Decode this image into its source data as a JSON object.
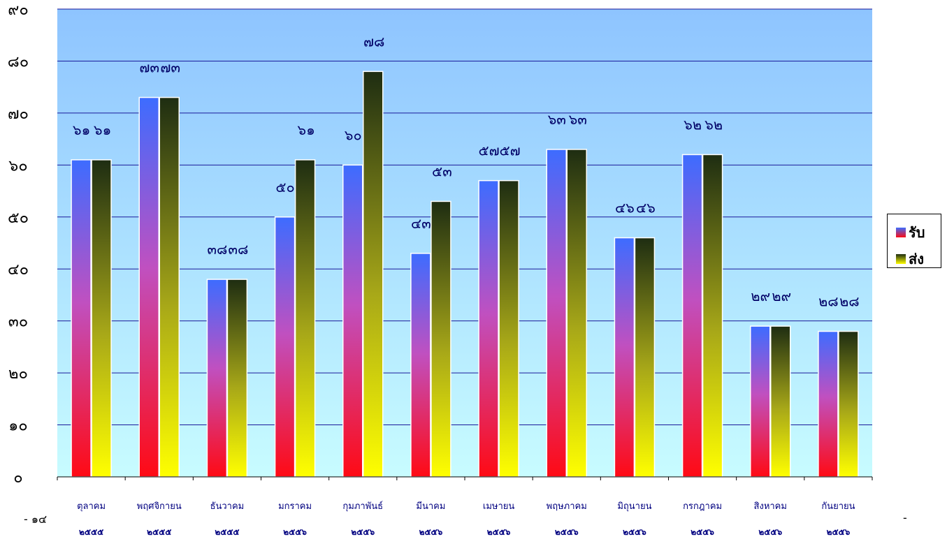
{
  "chart_data": {
    "type": "bar",
    "categories": [
      "ตุลาคม",
      "พฤศจิกายน",
      "ธันวาคม",
      "มกราคม",
      "กุมภาพันธ์",
      "มีนาคม",
      "เมษายน",
      "พฤษภาคม",
      "มิถุนายน",
      "กรกฎาคม",
      "สิงหาคม",
      "กันยายน"
    ],
    "years": [
      "๒๕๕๕",
      "๒๕๕๕",
      "๒๕๕๕",
      "๒๕๕๖",
      "๒๕๕๖",
      "๒๕๕๖",
      "๒๕๕๖",
      "๒๕๕๖",
      "๒๕๕๖",
      "๒๕๕๖",
      "๒๕๕๖",
      "๒๕๕๖"
    ],
    "series": [
      {
        "name": "รับ",
        "values": [
          61,
          73,
          38,
          50,
          60,
          43,
          57,
          63,
          46,
          62,
          29,
          28
        ],
        "labels": [
          "๖๑",
          "๗๓",
          "๓๘",
          "๕๐",
          "๖๐",
          "๔๓",
          "๕๗",
          "๖๓",
          "๔๖",
          "๖๒",
          "๒๙",
          "๒๘"
        ]
      },
      {
        "name": "ส่ง",
        "values": [
          61,
          73,
          38,
          61,
          78,
          53,
          57,
          63,
          46,
          62,
          29,
          28
        ],
        "labels": [
          "๖๑",
          "๗๓",
          "๓๘",
          "๖๑",
          "๗๘",
          "๕๓",
          "๕๗",
          "๖๓",
          "๔๖",
          "๖๒",
          "๒๙",
          "๒๘"
        ]
      }
    ],
    "ylim": [
      0,
      90
    ],
    "yticks": [
      "๐",
      "๑๐",
      "๒๐",
      "๓๐",
      "๔๐",
      "๕๐",
      "๖๐",
      "๗๐",
      "๘๐",
      "๙๐"
    ],
    "grid": true,
    "legend_position": "right",
    "colors": {
      "plot_top": "#8ec4ff",
      "plot_bottom": "#c8fcff",
      "grid": "#1a1a9a",
      "recv_top": "#3d6cff",
      "recv_mid": "#c050c0",
      "recv_bottom": "#ff0a14",
      "send_top": "#1e2d12",
      "send_mid": "#a8a818",
      "send_bottom": "#ffff00",
      "label": "#000066"
    }
  },
  "footer": {
    "left": "- ๑๔",
    "right": "-"
  }
}
